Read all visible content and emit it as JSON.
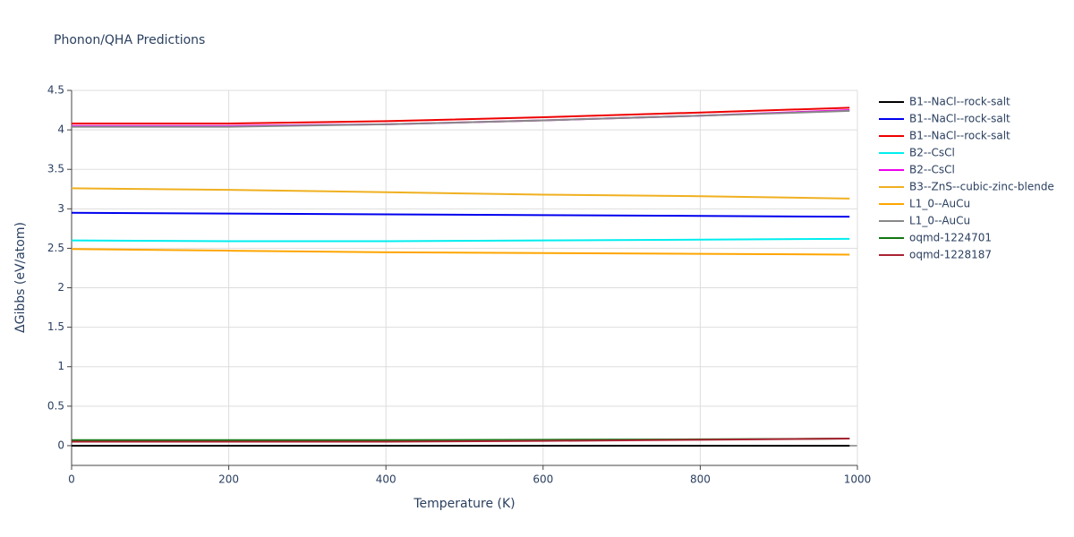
{
  "chart_data": {
    "type": "line",
    "title": "Phonon/QHA Predictions",
    "x_label": "Temperature (K)",
    "y_label": "ΔGibbs (eV/atom)",
    "x": [
      0,
      200,
      400,
      600,
      800,
      990
    ],
    "xlim": [
      0,
      1000
    ],
    "xticks": [
      0,
      200,
      400,
      600,
      800,
      1000
    ],
    "ylim": [
      -0.25,
      4.5
    ],
    "yticks": [
      0,
      0.5,
      1,
      1.5,
      2,
      2.5,
      3,
      3.5,
      4,
      4.5
    ],
    "grid": true,
    "legend": "right",
    "series": [
      {
        "name": "B1--NaCl--rock-salt",
        "color": "#000000",
        "values": [
          0.0,
          0.0,
          0.0,
          0.0,
          0.0,
          0.0
        ]
      },
      {
        "name": "B1--NaCl--rock-salt",
        "color": "#0000ee",
        "values": [
          2.95,
          2.94,
          2.93,
          2.92,
          2.91,
          2.9
        ]
      },
      {
        "name": "B1--NaCl--rock-salt",
        "color": "#ee0000",
        "values": [
          4.08,
          4.08,
          4.11,
          4.16,
          4.22,
          4.28
        ]
      },
      {
        "name": "B2--CsCl",
        "color": "#00eeee",
        "values": [
          2.6,
          2.59,
          2.59,
          2.6,
          2.61,
          2.62
        ]
      },
      {
        "name": "B2--CsCl",
        "color": "#ee00ee",
        "values": [
          4.05,
          4.05,
          4.07,
          4.12,
          4.18,
          4.25
        ]
      },
      {
        "name": "B3--ZnS--cubic-zinc-blende",
        "color": "#f0b020",
        "values": [
          3.26,
          3.24,
          3.21,
          3.18,
          3.16,
          3.13
        ]
      },
      {
        "name": "L1_0--AuCu",
        "color": "#ffa500",
        "values": [
          2.49,
          2.47,
          2.45,
          2.44,
          2.43,
          2.42
        ]
      },
      {
        "name": "L1_0--AuCu",
        "color": "#888888",
        "values": [
          4.04,
          4.04,
          4.07,
          4.12,
          4.18,
          4.24
        ]
      },
      {
        "name": "oqmd-1224701",
        "color": "#117711",
        "values": [
          0.07,
          0.07,
          0.07,
          0.075,
          0.08,
          0.09
        ]
      },
      {
        "name": "oqmd-1228187",
        "color": "#aa2233",
        "values": [
          0.05,
          0.05,
          0.05,
          0.06,
          0.075,
          0.09
        ]
      }
    ]
  }
}
